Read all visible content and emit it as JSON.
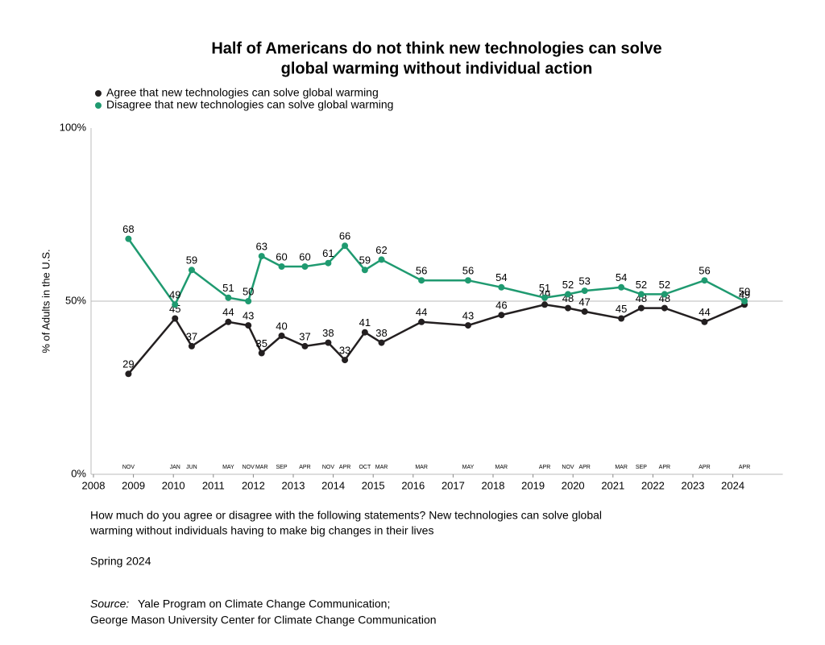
{
  "chart_data": {
    "type": "line",
    "title": [
      "Half of Americans do not think new technologies can solve",
      "global warming without individual action"
    ],
    "y_label": "% of Adults in the U.S.",
    "x": [
      "2008-11",
      "2010-01",
      "2010-06",
      "2011-05",
      "2011-11",
      "2012-03",
      "2012-09",
      "2013-04",
      "2013-11",
      "2014-04",
      "2014-10",
      "2015-03",
      "2016-03",
      "2017-05",
      "2018-03",
      "2019-04",
      "2019-11",
      "2020-04",
      "2021-03",
      "2021-09",
      "2022-04",
      "2023-04",
      "2024-04"
    ],
    "month_labels": [
      "NOV",
      "JAN",
      "JUN",
      "MAY",
      "NOV",
      "MAR",
      "SEP",
      "APR",
      "NOV",
      "APR",
      "OCT",
      "MAR",
      "MAR",
      "MAY",
      "MAR",
      "APR",
      "NOV",
      "APR",
      "MAR",
      "SEP",
      "APR",
      "APR",
      "APR"
    ],
    "series": [
      {
        "name": "Agree that new technologies can solve global warming",
        "color": "#231f20",
        "values": [
          29,
          45,
          37,
          44,
          43,
          35,
          40,
          37,
          38,
          33,
          41,
          38,
          44,
          43,
          46,
          49,
          48,
          47,
          45,
          48,
          48,
          44,
          49
        ]
      },
      {
        "name": "Disagree that new technologies can solve global warming",
        "color": "#1f9a70",
        "values": [
          68,
          49,
          59,
          51,
          50,
          63,
          60,
          60,
          61,
          66,
          59,
          62,
          56,
          56,
          54,
          51,
          52,
          53,
          54,
          52,
          52,
          56,
          50
        ]
      }
    ],
    "xlim": [
      2008,
      2025.25
    ],
    "xticks": [
      2008,
      2009,
      2010,
      2011,
      2012,
      2013,
      2014,
      2015,
      2016,
      2017,
      2018,
      2019,
      2020,
      2021,
      2022,
      2023,
      2024
    ],
    "ylim": [
      0,
      100
    ],
    "yticks": [
      {
        "value": 0,
        "label": "0%"
      },
      {
        "value": 50,
        "label": "50%"
      },
      {
        "value": 100,
        "label": "100%"
      }
    ],
    "question": [
      "How much do you agree or disagree with the following statements? New technologies can solve global",
      "warming without individuals having to make big changes in their lives"
    ],
    "period": "Spring 2024",
    "source_label": "Source:",
    "source": [
      "Yale Program on Climate Change Communication;",
      "George Mason University Center for Climate Change Communication"
    ]
  }
}
